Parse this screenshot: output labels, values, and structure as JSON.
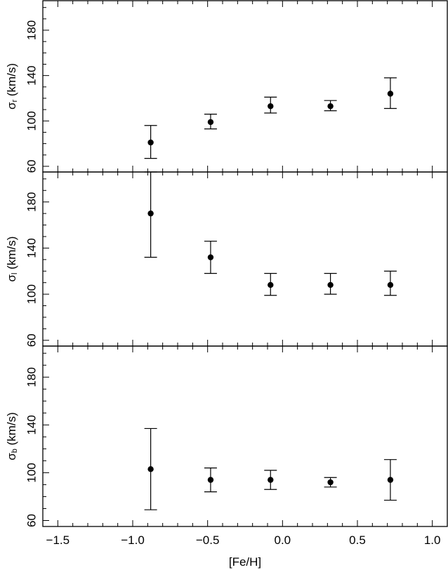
{
  "chart_data": {
    "type": "scatter",
    "xlabel": "[Fe/H]",
    "xlim": [
      -1.6,
      1.1
    ],
    "xticks": [
      -1.5,
      -1.0,
      -0.5,
      0.0,
      0.5,
      1.0
    ],
    "xtick_labels": [
      "−1.5",
      "−1.0",
      "−0.5",
      "0.0",
      "0.5",
      "1.0"
    ],
    "panels": [
      {
        "ylabel_symbol": "σ",
        "ylabel_subscript": "r",
        "ylabel_unit": " (km/s)",
        "ylim": [
          55,
          206
        ],
        "yticks": [
          60,
          100,
          140,
          180
        ],
        "ytick_labels": [
          "60",
          "100",
          "140",
          "180"
        ],
        "points": [
          {
            "x": -0.88,
            "y": 81,
            "err_low": 67,
            "err_high": 96
          },
          {
            "x": -0.48,
            "y": 99,
            "err_low": 93,
            "err_high": 106
          },
          {
            "x": -0.08,
            "y": 113,
            "err_low": 107,
            "err_high": 121
          },
          {
            "x": 0.32,
            "y": 113,
            "err_low": 109,
            "err_high": 118
          },
          {
            "x": 0.72,
            "y": 124,
            "err_low": 111,
            "err_high": 138
          }
        ]
      },
      {
        "ylabel_symbol": "σ",
        "ylabel_subscript": "l",
        "ylabel_unit": " (km/s)",
        "ylim": [
          55,
          206
        ],
        "yticks": [
          60,
          100,
          140,
          180
        ],
        "ytick_labels": [
          "60",
          "100",
          "140",
          "180"
        ],
        "points": [
          {
            "x": -0.88,
            "y": 170,
            "err_low": 132,
            "err_high": 206
          },
          {
            "x": -0.48,
            "y": 132,
            "err_low": 118,
            "err_high": 146
          },
          {
            "x": -0.08,
            "y": 108,
            "err_low": 99,
            "err_high": 118
          },
          {
            "x": 0.32,
            "y": 108,
            "err_low": 100,
            "err_high": 118
          },
          {
            "x": 0.72,
            "y": 108,
            "err_low": 99,
            "err_high": 120
          }
        ]
      },
      {
        "ylabel_symbol": "σ",
        "ylabel_subscript": "b",
        "ylabel_unit": " (km/s)",
        "ylim": [
          55,
          206
        ],
        "yticks": [
          60,
          100,
          140,
          180
        ],
        "ytick_labels": [
          "60",
          "100",
          "140",
          "180"
        ],
        "points": [
          {
            "x": -0.88,
            "y": 103,
            "err_low": 69,
            "err_high": 137
          },
          {
            "x": -0.48,
            "y": 94,
            "err_low": 84,
            "err_high": 104
          },
          {
            "x": -0.08,
            "y": 94,
            "err_low": 86,
            "err_high": 102
          },
          {
            "x": 0.32,
            "y": 92,
            "err_low": 88,
            "err_high": 96
          },
          {
            "x": 0.72,
            "y": 94,
            "err_low": 77,
            "err_high": 111
          }
        ]
      }
    ],
    "grid": false,
    "marker_color": "#000000",
    "axis_color": "#000000"
  }
}
